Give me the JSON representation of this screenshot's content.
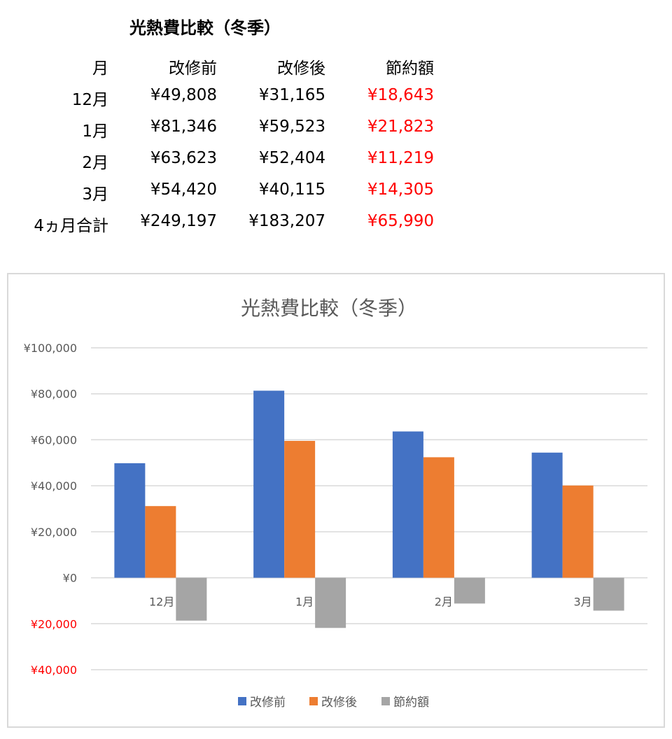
{
  "table": {
    "title": "光熱費比較（冬季）",
    "headers": [
      "月",
      "改修前",
      "改修後",
      "節約額"
    ],
    "rows": [
      [
        "12月",
        "¥49,808",
        "¥31,165",
        "¥18,643"
      ],
      [
        "1月",
        "¥81,346",
        "¥59,523",
        "¥21,823"
      ],
      [
        "2月",
        "¥63,623",
        "¥52,404",
        "¥11,219"
      ],
      [
        "3月",
        "¥54,420",
        "¥40,115",
        "¥14,305"
      ],
      [
        "4ヵ月合計",
        "¥249,197",
        "¥183,207",
        "¥65,990"
      ]
    ],
    "savings_color": "#ff0000"
  },
  "chart_data": {
    "type": "bar",
    "title": "光熱費比較（冬季）",
    "categories": [
      "12月",
      "1月",
      "2月",
      "3月"
    ],
    "series": [
      {
        "name": "改修前",
        "values": [
          49808,
          81346,
          63623,
          54420
        ],
        "color": "#4472c4"
      },
      {
        "name": "改修後",
        "values": [
          31165,
          59523,
          52404,
          40115
        ],
        "color": "#ed7d31"
      },
      {
        "name": "節約額",
        "values": [
          -18643,
          -21823,
          -11219,
          -14305
        ],
        "color": "#a5a5a5"
      }
    ],
    "ylim": [
      -40000,
      100000
    ],
    "yticks": [
      100000,
      80000,
      60000,
      40000,
      20000,
      0,
      -20000,
      -40000
    ],
    "ytick_labels": [
      "¥100,000",
      "¥80,000",
      "¥60,000",
      "¥40,000",
      "¥20,000",
      "¥0",
      "¥20,000",
      "¥40,000"
    ],
    "negative_label_color": "#ff0000",
    "grid": true,
    "legend": "bottom"
  }
}
